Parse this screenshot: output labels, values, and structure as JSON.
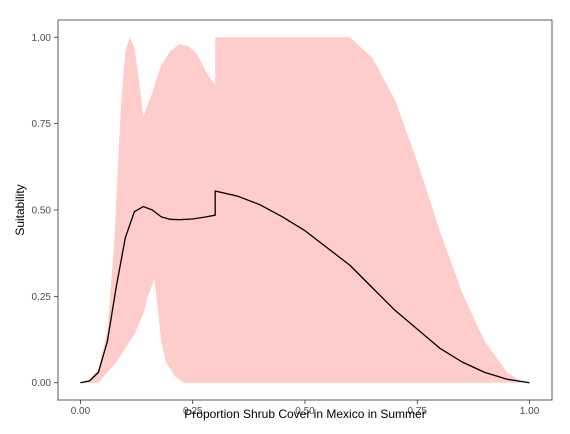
{
  "chart_data": {
    "type": "area",
    "title": "",
    "xlabel": "Proportion Shrub Cover in Mexico in Summer",
    "ylabel": "Suitability",
    "xlim": [
      -0.05,
      1.05
    ],
    "ylim": [
      -0.05,
      1.05
    ],
    "x_ticks": [
      0.0,
      0.25,
      0.5,
      0.75,
      1.0
    ],
    "x_tick_labels": [
      "0.00",
      "0.25",
      "0.50",
      "0.75",
      "1.00"
    ],
    "y_ticks": [
      0.0,
      0.25,
      0.5,
      0.75,
      1.0
    ],
    "y_tick_labels": [
      "0.00",
      "0.25",
      "0.50",
      "0.75",
      "1.00"
    ],
    "grid": false,
    "legend": "none",
    "colors": {
      "ribbon": "#ffcccc",
      "line": "#000000",
      "panel_border": "#333333"
    },
    "ribbon_upper": [
      {
        "x": 0.0,
        "y": 0.0
      },
      {
        "x": 0.02,
        "y": 0.01
      },
      {
        "x": 0.04,
        "y": 0.04
      },
      {
        "x": 0.06,
        "y": 0.15
      },
      {
        "x": 0.075,
        "y": 0.4
      },
      {
        "x": 0.09,
        "y": 0.8
      },
      {
        "x": 0.1,
        "y": 0.96
      },
      {
        "x": 0.11,
        "y": 1.0
      },
      {
        "x": 0.12,
        "y": 0.97
      },
      {
        "x": 0.13,
        "y": 0.88
      },
      {
        "x": 0.14,
        "y": 0.77
      },
      {
        "x": 0.16,
        "y": 0.84
      },
      {
        "x": 0.18,
        "y": 0.92
      },
      {
        "x": 0.2,
        "y": 0.96
      },
      {
        "x": 0.22,
        "y": 0.98
      },
      {
        "x": 0.24,
        "y": 0.975
      },
      {
        "x": 0.26,
        "y": 0.95
      },
      {
        "x": 0.28,
        "y": 0.9
      },
      {
        "x": 0.3,
        "y": 0.86
      },
      {
        "x": 0.3,
        "y": 1.0
      },
      {
        "x": 0.4,
        "y": 1.0
      },
      {
        "x": 0.5,
        "y": 1.0
      },
      {
        "x": 0.6,
        "y": 1.0
      },
      {
        "x": 0.65,
        "y": 0.94
      },
      {
        "x": 0.7,
        "y": 0.82
      },
      {
        "x": 0.75,
        "y": 0.64
      },
      {
        "x": 0.8,
        "y": 0.44
      },
      {
        "x": 0.85,
        "y": 0.26
      },
      {
        "x": 0.9,
        "y": 0.12
      },
      {
        "x": 0.95,
        "y": 0.03
      },
      {
        "x": 0.98,
        "y": 0.005
      },
      {
        "x": 1.0,
        "y": 0.0
      }
    ],
    "ribbon_lower": [
      {
        "x": 0.0,
        "y": 0.0
      },
      {
        "x": 0.04,
        "y": 0.0
      },
      {
        "x": 0.06,
        "y": 0.03
      },
      {
        "x": 0.08,
        "y": 0.06
      },
      {
        "x": 0.1,
        "y": 0.1
      },
      {
        "x": 0.12,
        "y": 0.14
      },
      {
        "x": 0.14,
        "y": 0.2
      },
      {
        "x": 0.15,
        "y": 0.25
      },
      {
        "x": 0.165,
        "y": 0.3
      },
      {
        "x": 0.17,
        "y": 0.24
      },
      {
        "x": 0.18,
        "y": 0.12
      },
      {
        "x": 0.19,
        "y": 0.06
      },
      {
        "x": 0.21,
        "y": 0.02
      },
      {
        "x": 0.23,
        "y": 0.0
      },
      {
        "x": 1.0,
        "y": 0.0
      }
    ],
    "line": [
      {
        "x": 0.0,
        "y": 0.0
      },
      {
        "x": 0.02,
        "y": 0.005
      },
      {
        "x": 0.04,
        "y": 0.03
      },
      {
        "x": 0.06,
        "y": 0.12
      },
      {
        "x": 0.08,
        "y": 0.28
      },
      {
        "x": 0.1,
        "y": 0.42
      },
      {
        "x": 0.12,
        "y": 0.495
      },
      {
        "x": 0.14,
        "y": 0.51
      },
      {
        "x": 0.16,
        "y": 0.5
      },
      {
        "x": 0.18,
        "y": 0.48
      },
      {
        "x": 0.2,
        "y": 0.473
      },
      {
        "x": 0.22,
        "y": 0.472
      },
      {
        "x": 0.25,
        "y": 0.474
      },
      {
        "x": 0.28,
        "y": 0.48
      },
      {
        "x": 0.3,
        "y": 0.485
      },
      {
        "x": 0.3,
        "y": 0.555
      },
      {
        "x": 0.35,
        "y": 0.54
      },
      {
        "x": 0.4,
        "y": 0.515
      },
      {
        "x": 0.45,
        "y": 0.48
      },
      {
        "x": 0.5,
        "y": 0.44
      },
      {
        "x": 0.55,
        "y": 0.39
      },
      {
        "x": 0.6,
        "y": 0.34
      },
      {
        "x": 0.65,
        "y": 0.275
      },
      {
        "x": 0.7,
        "y": 0.21
      },
      {
        "x": 0.75,
        "y": 0.155
      },
      {
        "x": 0.8,
        "y": 0.1
      },
      {
        "x": 0.85,
        "y": 0.06
      },
      {
        "x": 0.9,
        "y": 0.03
      },
      {
        "x": 0.95,
        "y": 0.01
      },
      {
        "x": 1.0,
        "y": 0.0
      }
    ]
  }
}
